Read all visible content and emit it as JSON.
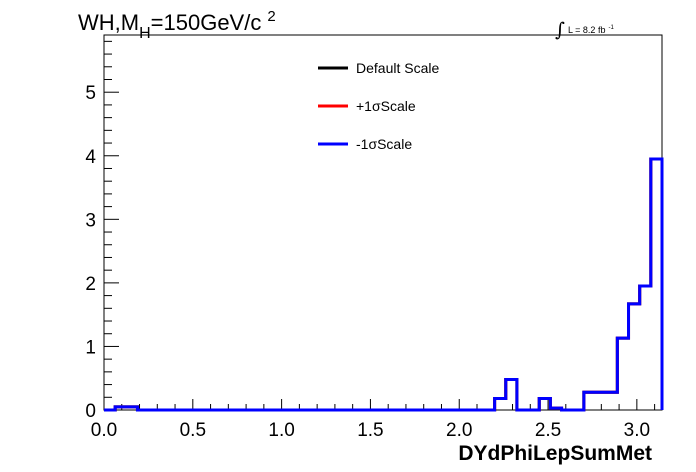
{
  "chart_data": {
    "type": "line",
    "style": "step-histogram",
    "title": "WH,M",
    "title_sub": "H",
    "title_tail": "=150GeV/c",
    "title_sup": "2",
    "lumi_integral": "∫",
    "lumi_text": "L = 8.2 fb",
    "lumi_sup": "-1",
    "xlabel": "DYdPhiLepSumMet",
    "ylabel": "",
    "xlim": [
      0,
      3.14159
    ],
    "ylim": [
      0,
      5.9
    ],
    "x_ticks": [
      0.0,
      0.5,
      1.0,
      1.5,
      2.0,
      2.5,
      3.0
    ],
    "x_tick_labels": [
      "0.0",
      "0.5",
      "1.0",
      "1.5",
      "2.0",
      "2.5",
      "3.0"
    ],
    "y_ticks": [
      0,
      1,
      2,
      3,
      4,
      5
    ],
    "y_tick_labels": [
      "0",
      "1",
      "2",
      "3",
      "4",
      "5"
    ],
    "legend_position": "top-center",
    "bins": 50,
    "series": [
      {
        "name": "Default Scale",
        "color": "#000000",
        "values": [
          0,
          0.05,
          0.05,
          0,
          0,
          0,
          0,
          0,
          0,
          0,
          0,
          0,
          0,
          0,
          0,
          0,
          0,
          0,
          0,
          0,
          0,
          0,
          0,
          0,
          0,
          0,
          0,
          0,
          0,
          0,
          0,
          0,
          0,
          0,
          0,
          0.18,
          0.48,
          0,
          0,
          0.18,
          0.03,
          0,
          0,
          0.28,
          0.28,
          0.28,
          1.13,
          1.67,
          1.95,
          3.95
        ]
      },
      {
        "name": "+1σScale",
        "color": "#ff0000",
        "values": [
          0,
          0.05,
          0.05,
          0,
          0,
          0,
          0,
          0,
          0,
          0,
          0,
          0,
          0,
          0,
          0,
          0,
          0,
          0,
          0,
          0,
          0,
          0,
          0,
          0,
          0,
          0,
          0,
          0,
          0,
          0,
          0,
          0,
          0,
          0,
          0,
          0.18,
          0.48,
          0,
          0,
          0.18,
          0.03,
          0,
          0,
          0.28,
          0.28,
          0.28,
          1.13,
          1.67,
          1.95,
          3.95
        ]
      },
      {
        "name": "-1σScale",
        "color": "#0000ff",
        "values": [
          0,
          0.05,
          0.05,
          0,
          0,
          0,
          0,
          0,
          0,
          0,
          0,
          0,
          0,
          0,
          0,
          0,
          0,
          0,
          0,
          0,
          0,
          0,
          0,
          0,
          0,
          0,
          0,
          0,
          0,
          0,
          0,
          0,
          0,
          0,
          0,
          0.18,
          0.48,
          0,
          0,
          0.18,
          0.03,
          0,
          0,
          0.28,
          0.28,
          0.28,
          1.13,
          1.67,
          1.95,
          3.95
        ]
      }
    ]
  }
}
